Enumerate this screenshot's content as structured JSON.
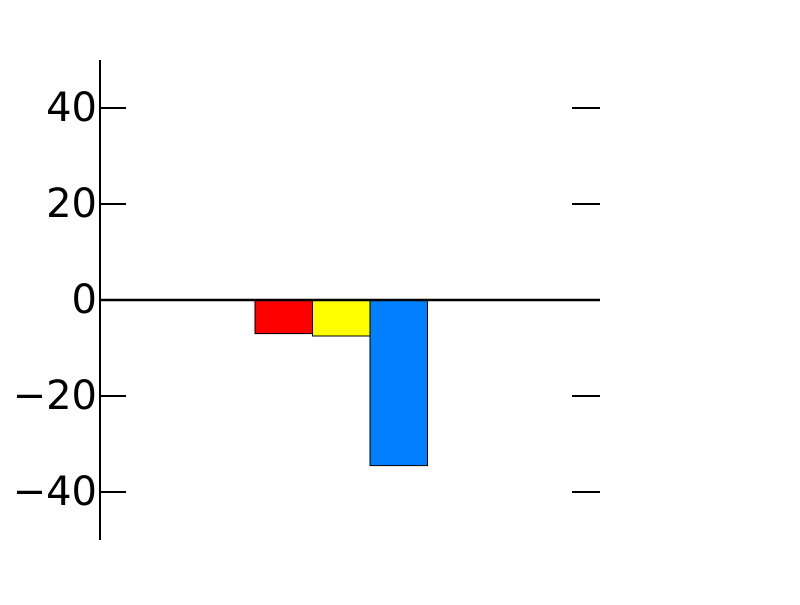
{
  "chart_data": {
    "type": "bar",
    "title": "",
    "xlabel": "",
    "ylabel": "",
    "ylim": [
      -50,
      50
    ],
    "yticks": [
      -40,
      -20,
      0,
      20,
      40
    ],
    "ytick_labels": [
      "−40",
      "−20",
      "0",
      "20",
      "40"
    ],
    "grid": false,
    "legend": "none",
    "categories": [
      "",
      "",
      ""
    ],
    "values": [
      -7,
      -7.5,
      -34.5
    ],
    "colors": [
      "#ff0000",
      "#ffff00",
      "#0080ff"
    ]
  }
}
